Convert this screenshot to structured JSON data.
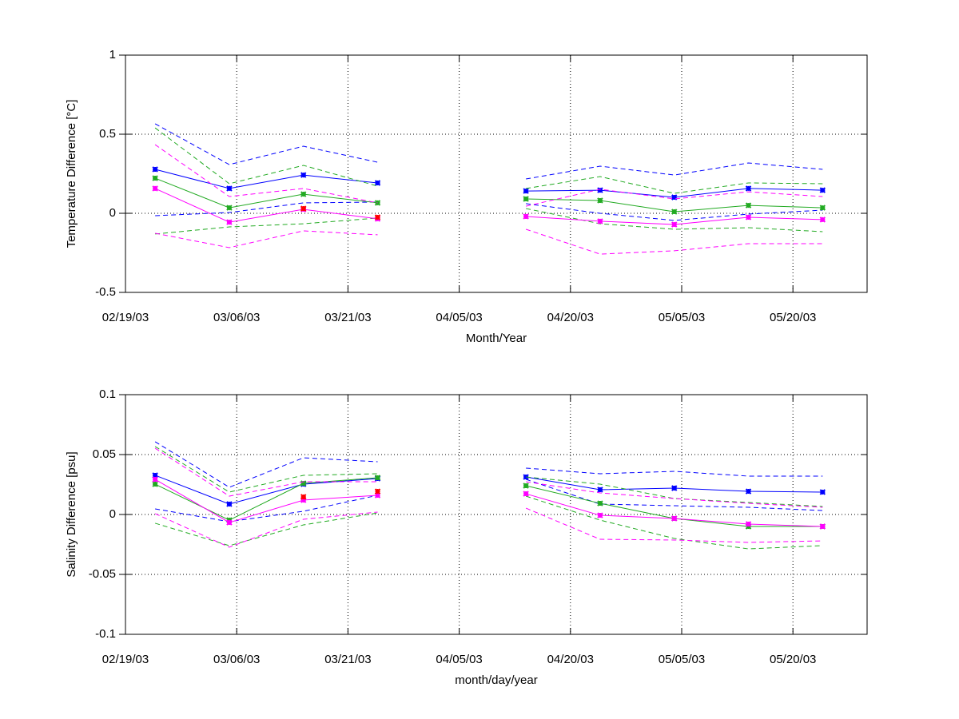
{
  "chart_data": [
    {
      "type": "line",
      "ylabel": "Temperature Difference [°C]",
      "xlabel": "Month/Year",
      "x": [
        "2003-02-23",
        "2003-03-05",
        "2003-03-15",
        "2003-03-25",
        "2003-04-04",
        "2003-04-14",
        "2003-04-24",
        "2003-05-04",
        "2003-05-14",
        "2003-05-24"
      ],
      "xlim": [
        "2003-02-19",
        "2003-05-30"
      ],
      "xticks": [
        {
          "value": "2003-02-19",
          "label": "02/19/03"
        },
        {
          "value": "2003-03-06",
          "label": "03/06/03"
        },
        {
          "value": "2003-03-21",
          "label": "03/21/03"
        },
        {
          "value": "2003-04-05",
          "label": "04/05/03"
        },
        {
          "value": "2003-04-20",
          "label": "04/20/03"
        },
        {
          "value": "2003-05-05",
          "label": "05/05/03"
        },
        {
          "value": "2003-05-20",
          "label": "05/20/03"
        }
      ],
      "ylim": [
        -0.5,
        1
      ],
      "yticks": [
        -0.5,
        0,
        0.5,
        1
      ],
      "grid": true,
      "series": [
        {
          "color": "#0000ff",
          "line": "solid",
          "marker": true,
          "values": [
            0.278,
            0.157,
            0.242,
            0.192,
            null,
            0.141,
            0.146,
            0.101,
            0.157,
            0.146
          ]
        },
        {
          "color": "#0000ff",
          "line": "dashed",
          "marker": false,
          "values": [
            0.566,
            0.308,
            0.424,
            0.323,
            null,
            0.217,
            0.298,
            0.242,
            0.318,
            0.278
          ]
        },
        {
          "color": "#0000ff",
          "line": "dashed",
          "marker": false,
          "values": [
            -0.015,
            0.005,
            0.066,
            0.071,
            null,
            0.061,
            0,
            -0.045,
            -0.005,
            0.02
          ]
        },
        {
          "color": "#22aa22",
          "line": "solid",
          "marker": true,
          "values": [
            0.222,
            0.035,
            0.121,
            0.066,
            null,
            0.091,
            0.081,
            0.01,
            0.05,
            0.035
          ]
        },
        {
          "color": "#22aa22",
          "line": "dashed",
          "marker": false,
          "values": [
            0.54,
            0.187,
            0.303,
            0.172,
            null,
            0.157,
            0.232,
            0.126,
            0.192,
            0.187
          ]
        },
        {
          "color": "#22aa22",
          "line": "dashed",
          "marker": false,
          "values": [
            -0.131,
            -0.086,
            -0.066,
            -0.03,
            null,
            0.03,
            -0.066,
            -0.101,
            -0.091,
            -0.116
          ]
        },
        {
          "color": "#ff00ff",
          "line": "solid",
          "marker": true,
          "values": [
            0.157,
            -0.056,
            0.025,
            -0.035,
            null,
            -0.02,
            -0.05,
            -0.071,
            -0.025,
            -0.04
          ]
        },
        {
          "color": "#ff00ff",
          "line": "dashed",
          "marker": false,
          "values": [
            0.434,
            0.106,
            0.157,
            0.066,
            null,
            0.045,
            0.152,
            0.091,
            0.136,
            0.106
          ]
        },
        {
          "color": "#ff00ff",
          "line": "dashed",
          "marker": false,
          "values": [
            -0.126,
            -0.217,
            -0.111,
            -0.136,
            null,
            -0.101,
            -0.258,
            -0.237,
            -0.192,
            -0.192
          ]
        },
        {
          "color": "#ff0000",
          "line": "none",
          "marker": true,
          "values": [
            null,
            null,
            0.03,
            -0.025,
            null,
            null,
            null,
            null,
            null,
            null
          ]
        }
      ]
    },
    {
      "type": "line",
      "ylabel": "Salinity Difference [psu]",
      "xlabel": "month/day/year",
      "x": [
        "2003-02-23",
        "2003-03-05",
        "2003-03-15",
        "2003-03-25",
        "2003-04-04",
        "2003-04-14",
        "2003-04-24",
        "2003-05-04",
        "2003-05-14",
        "2003-05-24"
      ],
      "xlim": [
        "2003-02-19",
        "2003-05-30"
      ],
      "xticks": [
        {
          "value": "2003-02-19",
          "label": "02/19/03"
        },
        {
          "value": "2003-03-06",
          "label": "03/06/03"
        },
        {
          "value": "2003-03-21",
          "label": "03/21/03"
        },
        {
          "value": "2003-04-05",
          "label": "04/05/03"
        },
        {
          "value": "2003-04-20",
          "label": "04/20/03"
        },
        {
          "value": "2003-05-05",
          "label": "05/05/03"
        },
        {
          "value": "2003-05-20",
          "label": "05/20/03"
        }
      ],
      "ylim": [
        -0.1,
        0.1
      ],
      "yticks": [
        -0.1,
        -0.05,
        0,
        0.05,
        0.1
      ],
      "grid": true,
      "series": [
        {
          "color": "#0000ff",
          "line": "solid",
          "marker": true,
          "values": [
            0.0327,
            0.0087,
            0.0253,
            0.03,
            null,
            0.0313,
            0.0207,
            0.022,
            0.0193,
            0.0187
          ]
        },
        {
          "color": "#0000ff",
          "line": "dashed",
          "marker": false,
          "values": [
            0.0607,
            0.0227,
            0.0473,
            0.044,
            null,
            0.0387,
            0.034,
            0.036,
            0.032,
            0.032
          ]
        },
        {
          "color": "#0000ff",
          "line": "dashed",
          "marker": false,
          "values": [
            0.0047,
            -0.006,
            0.0027,
            0.016,
            null,
            0.0293,
            0.0087,
            0.0073,
            0.006,
            0.0033
          ]
        },
        {
          "color": "#22aa22",
          "line": "solid",
          "marker": true,
          "values": [
            0.0253,
            -0.0047,
            0.026,
            0.0307,
            null,
            0.024,
            0.0093,
            -0.0033,
            -0.01,
            -0.01
          ]
        },
        {
          "color": "#22aa22",
          "line": "dashed",
          "marker": false,
          "values": [
            0.0567,
            0.0187,
            0.0327,
            0.034,
            null,
            0.0313,
            0.0253,
            0.0133,
            0.01,
            0.0067
          ]
        },
        {
          "color": "#22aa22",
          "line": "dashed",
          "marker": false,
          "values": [
            -0.0073,
            -0.026,
            -0.0087,
            0.0013,
            null,
            0.0153,
            -0.0047,
            -0.02,
            -0.0287,
            -0.026
          ]
        },
        {
          "color": "#ff00ff",
          "line": "solid",
          "marker": true,
          "values": [
            0.0293,
            -0.0067,
            0.012,
            0.016,
            null,
            0.0173,
            -0.0007,
            -0.0033,
            -0.008,
            -0.01
          ]
        },
        {
          "color": "#ff00ff",
          "line": "dashed",
          "marker": false,
          "values": [
            0.0553,
            0.0153,
            0.0273,
            0.0273,
            null,
            0.0273,
            0.018,
            0.0133,
            0.0093,
            0.006
          ]
        },
        {
          "color": "#ff00ff",
          "line": "dashed",
          "marker": false,
          "values": [
            0.0007,
            -0.0273,
            -0.004,
            0.002,
            null,
            0.0053,
            -0.0207,
            -0.0213,
            -0.0233,
            -0.022
          ]
        },
        {
          "color": "#ff0000",
          "line": "none",
          "marker": true,
          "values": [
            null,
            null,
            0.0147,
            0.0193,
            null,
            null,
            null,
            null,
            null,
            null
          ]
        }
      ]
    }
  ]
}
